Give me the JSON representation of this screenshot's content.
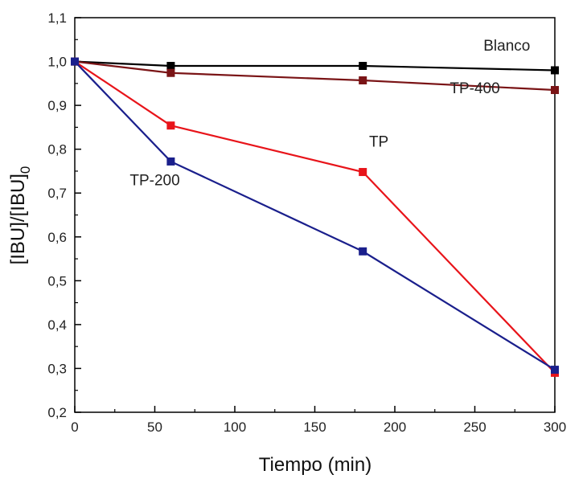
{
  "chart_data": {
    "type": "line",
    "xlabel": "Tiempo (min)",
    "ylabel_main": "[IBU]/[IBU]",
    "ylabel_sub": "0",
    "xlim": [
      0,
      300
    ],
    "ylim": [
      0.2,
      1.1
    ],
    "x_ticks": [
      0,
      50,
      100,
      150,
      200,
      250,
      300
    ],
    "x_tick_labels": [
      "0",
      "50",
      "100",
      "150",
      "200",
      "250",
      "300"
    ],
    "y_ticks": [
      0.2,
      0.3,
      0.4,
      0.5,
      0.6,
      0.7,
      0.8,
      0.9,
      1.0,
      1.1
    ],
    "y_tick_labels": [
      "0,2",
      "0,3",
      "0,4",
      "0,5",
      "0,6",
      "0,7",
      "0,8",
      "0,9",
      "1,0",
      "1,1"
    ],
    "grid": false,
    "x": [
      0,
      60,
      180,
      300
    ],
    "series": [
      {
        "name": "Blanco",
        "color": "#000000",
        "values": [
          1.0,
          0.99,
          0.99,
          0.98
        ],
        "label_anchor": {
          "x": 270,
          "y": 1.025
        }
      },
      {
        "name": "TP-400",
        "color": "#7a1416",
        "values": [
          1.0,
          0.974,
          0.957,
          0.935
        ],
        "label_anchor": {
          "x": 250,
          "y": 0.928
        }
      },
      {
        "name": "TP",
        "color": "#e8141a",
        "values": [
          1.0,
          0.854,
          0.748,
          0.29
        ],
        "label_anchor": {
          "x": 190,
          "y": 0.806
        }
      },
      {
        "name": "TP-200",
        "color": "#1a1f8c",
        "values": [
          1.0,
          0.772,
          0.567,
          0.297
        ],
        "label_anchor": {
          "x": 50,
          "y": 0.718
        }
      }
    ]
  }
}
